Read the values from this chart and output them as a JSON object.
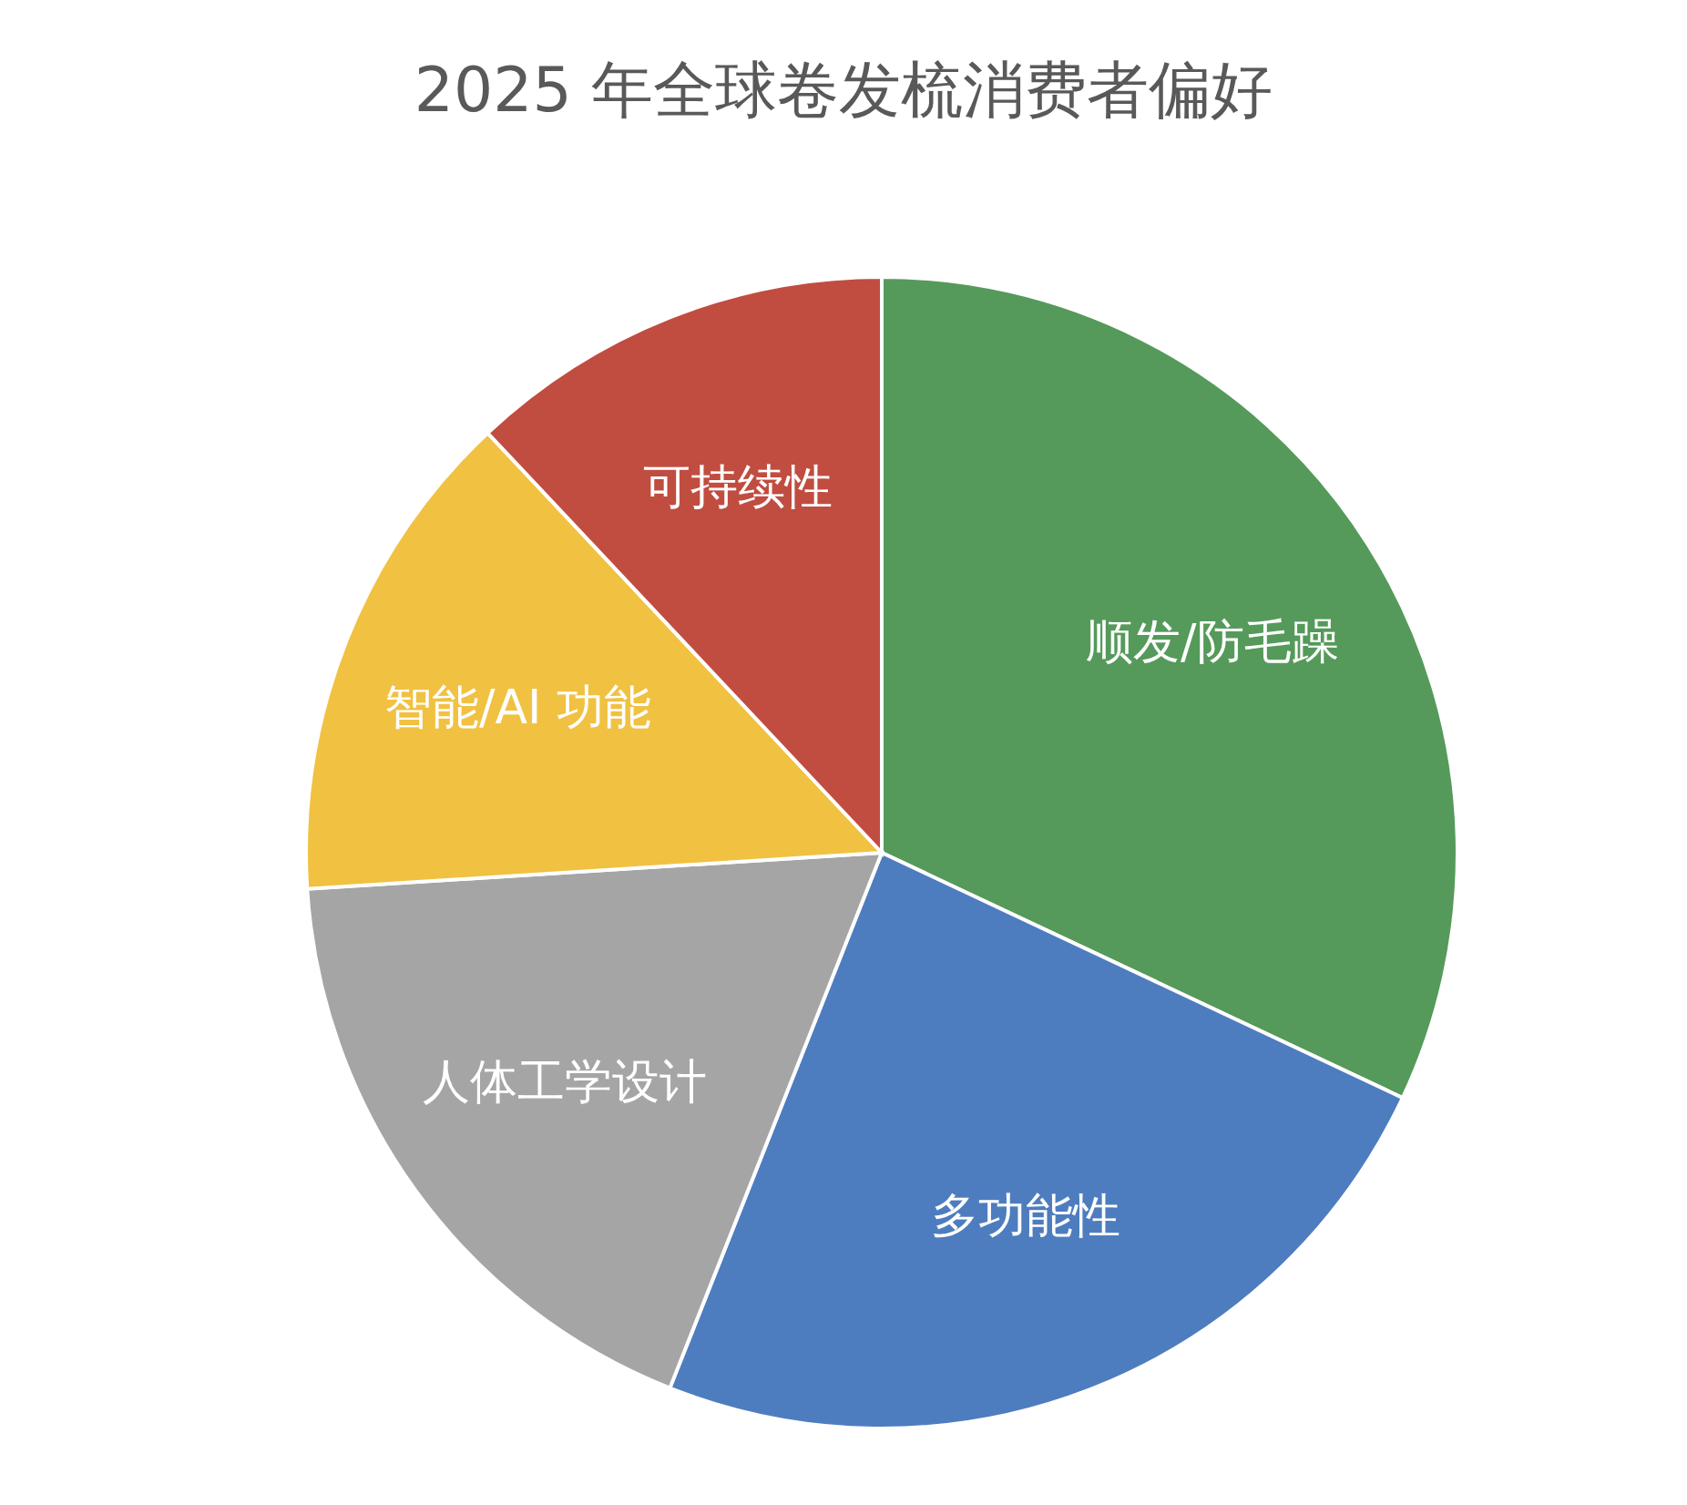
{
  "chart_data": {
    "type": "pie",
    "title": "2025 年全球卷发梳消费者偏好",
    "categories": [
      "顺发/防毛躁",
      "多功能性",
      "人体工学设计",
      "智能/AI 功能",
      "可持续性"
    ],
    "values": [
      32,
      24,
      18,
      14,
      12
    ],
    "colors": [
      "#559a5a",
      "#4e7dbf",
      "#a5a5a5",
      "#f1c142",
      "#c04d40"
    ]
  }
}
